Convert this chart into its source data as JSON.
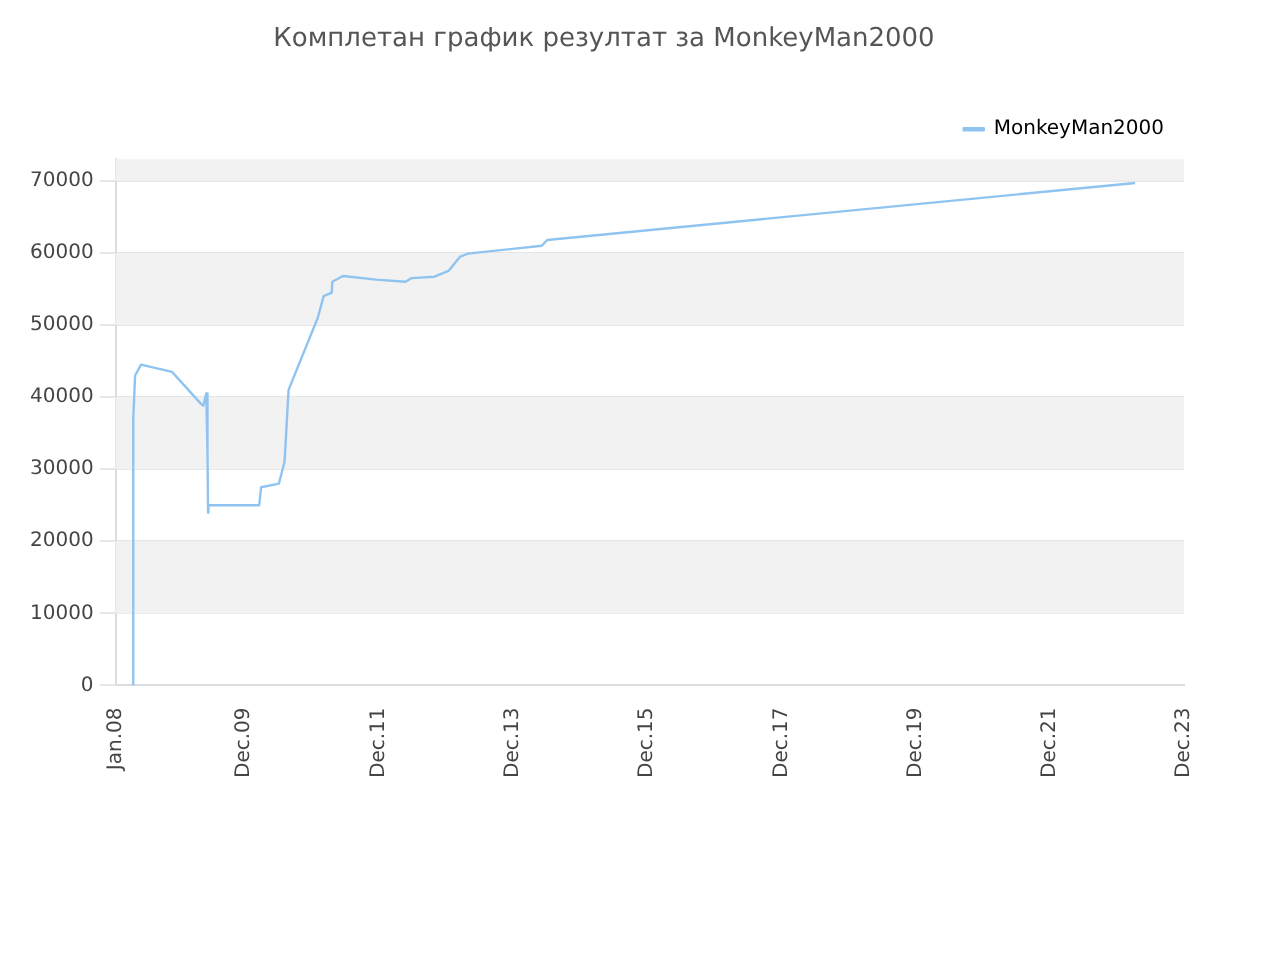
{
  "chart_data": {
    "type": "line",
    "title": "Комплетан график резултат за MonkeyMan2000",
    "x": [
      "2008-04-05",
      "2008-04-06",
      "2008-04-16",
      "2008-05-18",
      "2008-11-03",
      "2009-04-12",
      "2009-04-22",
      "2009-05-08",
      "2009-05-15",
      "2009-05-18",
      "2009-05-20",
      "2010-02-20",
      "2010-03-03",
      "2010-06-07",
      "2010-07-08",
      "2010-07-30",
      "2011-01-05",
      "2011-02-06",
      "2011-03-22",
      "2011-03-25",
      "2011-05-22",
      "2011-11-18",
      "2012-04-26",
      "2012-05-28",
      "2012-10-01",
      "2012-12-16",
      "2013-02-18",
      "2013-04-01",
      "2014-05-08",
      "2014-06-06",
      "2023-03-10"
    ],
    "series": [
      {
        "name": "MonkeyMan2000",
        "color": "#90c4f0",
        "values": [
          0,
          37000,
          43000,
          44500,
          43500,
          39000,
          38800,
          40500,
          32000,
          24000,
          25000,
          25000,
          27500,
          28000,
          31000,
          41000,
          51000,
          54000,
          54500,
          56000,
          56800,
          56300,
          56000,
          56500,
          56700,
          57500,
          59500,
          59900,
          61000,
          61800,
          69700
        ]
      }
    ],
    "xlim": [
      "2008-01-01",
      "2023-12-01"
    ],
    "xticks": [
      {
        "value": "2008-01-01",
        "label": "Jan.08"
      },
      {
        "value": "2009-12-01",
        "label": "Dec.09"
      },
      {
        "value": "2011-12-01",
        "label": "Dec.11"
      },
      {
        "value": "2013-12-01",
        "label": "Dec.13"
      },
      {
        "value": "2015-12-01",
        "label": "Dec.15"
      },
      {
        "value": "2017-12-01",
        "label": "Dec.17"
      },
      {
        "value": "2019-12-01",
        "label": "Dec.19"
      },
      {
        "value": "2021-12-01",
        "label": "Dec.21"
      },
      {
        "value": "2023-12-01",
        "label": "Dec.23"
      }
    ],
    "ylim": [
      0,
      73000
    ],
    "yticks": [
      0,
      10000,
      20000,
      30000,
      40000,
      50000,
      60000,
      70000
    ],
    "grid": "y",
    "legend": "top right",
    "marker": "none",
    "line_style": "solid"
  }
}
